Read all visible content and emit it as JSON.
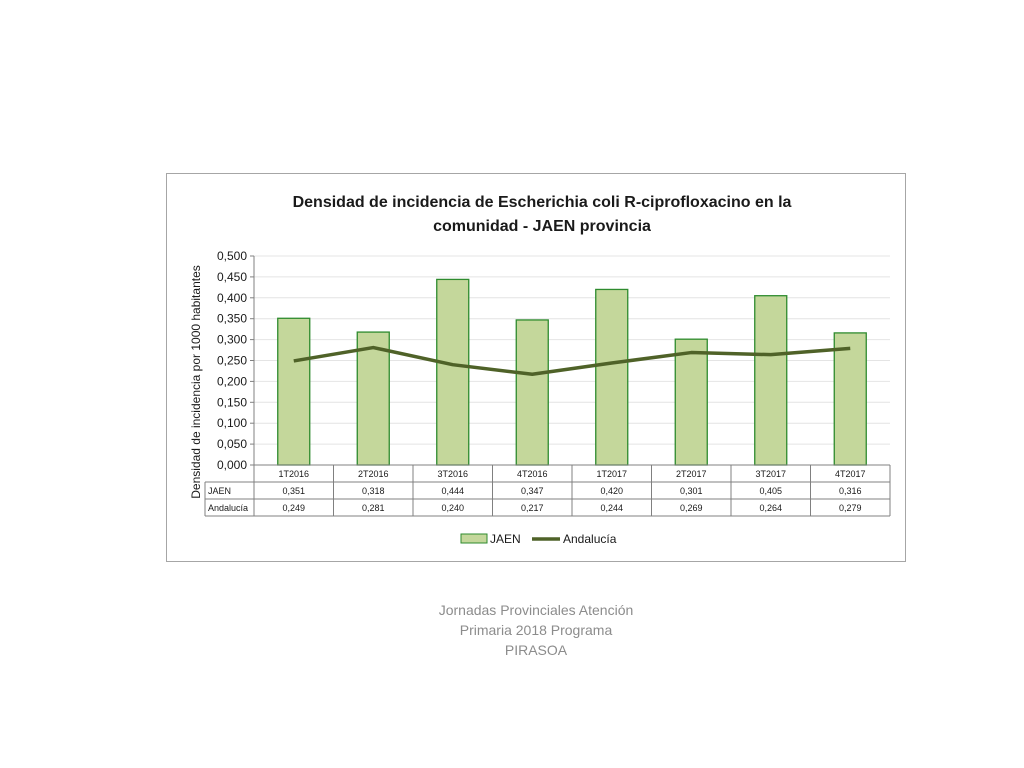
{
  "chart_data": {
    "type": "bar",
    "title_line1": "Densidad de incidencia de Escherichia coli R-ciprofloxacino en la",
    "title_line2": "comunidad - JAEN provincia",
    "ylabel": "Densidad de incidencia por 1000 habitantes",
    "categories": [
      "1T2016",
      "2T2016",
      "3T2016",
      "4T2016",
      "1T2017",
      "2T2017",
      "3T2017",
      "4T2017"
    ],
    "ylim": [
      0,
      0.5
    ],
    "yticks": [
      "0,000",
      "0,050",
      "0,100",
      "0,150",
      "0,200",
      "0,250",
      "0,300",
      "0,350",
      "0,400",
      "0,450",
      "0,500"
    ],
    "series": [
      {
        "name": "JAEN",
        "kind": "bar",
        "color": "#c4d79b",
        "edge": "#2e8b2e",
        "values": [
          0.351,
          0.318,
          0.444,
          0.347,
          0.42,
          0.301,
          0.405,
          0.316
        ],
        "labels": [
          "0,351",
          "0,318",
          "0,444",
          "0,347",
          "0,420",
          "0,301",
          "0,405",
          "0,316"
        ]
      },
      {
        "name": "Andalucía",
        "kind": "line",
        "color": "#4f6228",
        "values": [
          0.249,
          0.281,
          0.24,
          0.217,
          0.244,
          0.269,
          0.264,
          0.279
        ],
        "labels": [
          "0,249",
          "0,281",
          "0,240",
          "0,217",
          "0,244",
          "0,269",
          "0,264",
          "0,279"
        ]
      }
    ],
    "grid": true,
    "legend": "bottom",
    "data_table": true
  },
  "footer": {
    "line1": "Jornadas Provinciales Atención",
    "line2": "Primaria 2018  Programa",
    "line3": "PIRASOA"
  }
}
